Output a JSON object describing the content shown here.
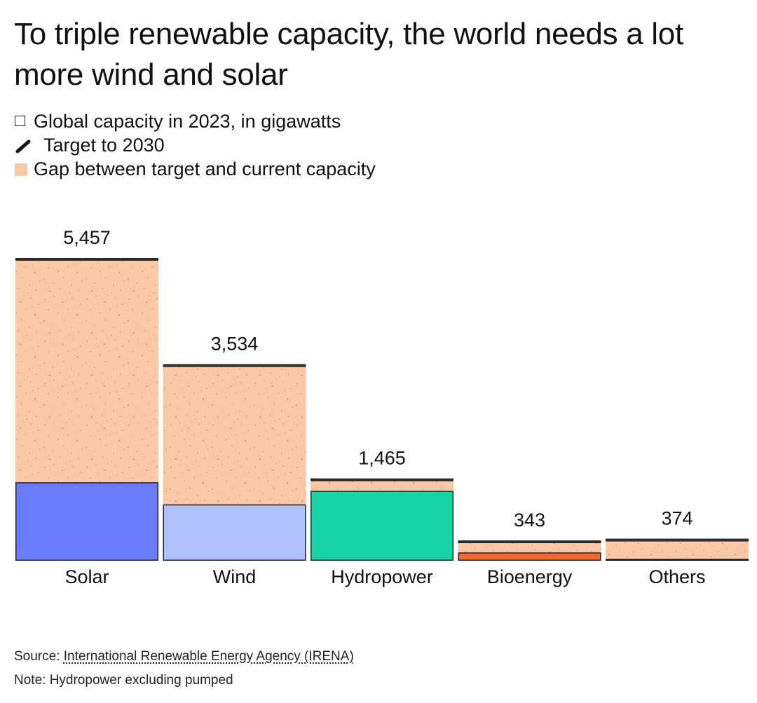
{
  "title": "To triple renewable capacity, the world needs a lot more wind and solar",
  "legend": {
    "capacity": "Global capacity in 2023, in gigawatts",
    "target": "Target to 2030",
    "gap": "Gap between target and current capacity"
  },
  "source": {
    "label": "Source:",
    "text": "International Renewable Energy Agency (IRENA)"
  },
  "note": "Note: Hydropower excluding pumped",
  "colors": {
    "gap": "#fbc8a5",
    "speckle": "#8a7a70",
    "target_line": "#2b2b2b",
    "outline": "#222222"
  },
  "chart_data": {
    "type": "bar",
    "categories": [
      "Solar",
      "Wind",
      "Hydropower",
      "Bioenergy",
      "Others"
    ],
    "series": [
      {
        "name": "Global capacity in 2023, in gigawatts",
        "values": [
          1420,
          1020,
          1265,
          150,
          20
        ]
      },
      {
        "name": "Target to 2030",
        "values": [
          5457,
          3534,
          1465,
          343,
          374
        ]
      }
    ],
    "target_labels": [
      "5,457",
      "3,534",
      "1,465",
      "343",
      "374"
    ],
    "bar_colors": [
      "#6a7dfe",
      "#b1c0ff",
      "#17d4a4",
      "#f2692d",
      "#111111"
    ],
    "ylim": [
      0,
      5457
    ],
    "grid": false,
    "legend": "top-left"
  }
}
